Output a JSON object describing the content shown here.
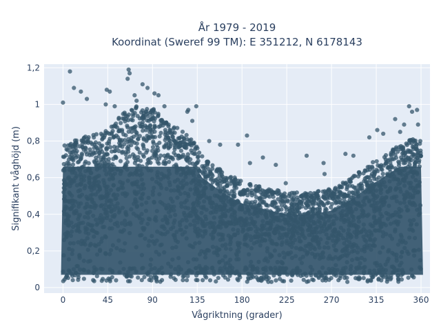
{
  "chart_data": {
    "type": "scatter",
    "title_line1": "År 1979 - 2019",
    "title_line2": "Koordinat (Sweref 99 TM): E 351212, N 6178143",
    "xlabel": "Vågriktning (grader)",
    "ylabel": "Signifikant våghöjd (m)",
    "xlim": [
      -19,
      369
    ],
    "ylim": [
      -0.03,
      1.22
    ],
    "xticks": [
      0,
      45,
      90,
      135,
      180,
      225,
      270,
      315,
      360
    ],
    "yticks": [
      0,
      0.2,
      0.4,
      0.6,
      0.8,
      1,
      1.2
    ],
    "ytick_labels": [
      "0",
      "0,2",
      "0,4",
      "0,6",
      "0,8",
      "1",
      "1,2"
    ],
    "grid": true,
    "legend": "none",
    "background_color": "#e5ecf6",
    "marker_color": "#34556b",
    "description": "Dense scatter of significant wave height vs wave direction; bulk of points 0.05–0.6 m across all directions, upper envelope highest near 60–100° (~1.1–1.2 m) and near 340–360° (~0.95 m), lowest near 200–260° (~0.55 m).",
    "outliers": [
      {
        "x": 7,
        "y": 1.18
      },
      {
        "x": 0,
        "y": 1.01
      },
      {
        "x": 11,
        "y": 1.09
      },
      {
        "x": 18,
        "y": 1.07
      },
      {
        "x": 24,
        "y": 1.03
      },
      {
        "x": 44,
        "y": 1.08
      },
      {
        "x": 47,
        "y": 1.07
      },
      {
        "x": 43,
        "y": 1.0
      },
      {
        "x": 52,
        "y": 0.99
      },
      {
        "x": 66,
        "y": 1.19
      },
      {
        "x": 67,
        "y": 1.17
      },
      {
        "x": 65,
        "y": 1.14
      },
      {
        "x": 72,
        "y": 1.05
      },
      {
        "x": 74,
        "y": 1.02
      },
      {
        "x": 80,
        "y": 1.11
      },
      {
        "x": 85,
        "y": 1.09
      },
      {
        "x": 92,
        "y": 1.06
      },
      {
        "x": 96,
        "y": 1.05
      },
      {
        "x": 102,
        "y": 0.99
      },
      {
        "x": 125,
        "y": 0.96
      },
      {
        "x": 126,
        "y": 0.97
      },
      {
        "x": 130,
        "y": 0.91
      },
      {
        "x": 134,
        "y": 0.99
      },
      {
        "x": 147,
        "y": 0.8
      },
      {
        "x": 158,
        "y": 0.78
      },
      {
        "x": 176,
        "y": 0.78
      },
      {
        "x": 185,
        "y": 0.83
      },
      {
        "x": 188,
        "y": 0.68
      },
      {
        "x": 201,
        "y": 0.71
      },
      {
        "x": 214,
        "y": 0.67
      },
      {
        "x": 224,
        "y": 0.57
      },
      {
        "x": 245,
        "y": 0.72
      },
      {
        "x": 262,
        "y": 0.68
      },
      {
        "x": 263,
        "y": 0.62
      },
      {
        "x": 284,
        "y": 0.73
      },
      {
        "x": 292,
        "y": 0.72
      },
      {
        "x": 308,
        "y": 0.82
      },
      {
        "x": 316,
        "y": 0.86
      },
      {
        "x": 322,
        "y": 0.84
      },
      {
        "x": 334,
        "y": 0.92
      },
      {
        "x": 348,
        "y": 0.99
      },
      {
        "x": 351,
        "y": 0.96
      },
      {
        "x": 356,
        "y": 0.97
      },
      {
        "x": 343,
        "y": 0.89
      },
      {
        "x": 357,
        "y": 0.89
      },
      {
        "x": 339,
        "y": 0.85
      }
    ]
  }
}
